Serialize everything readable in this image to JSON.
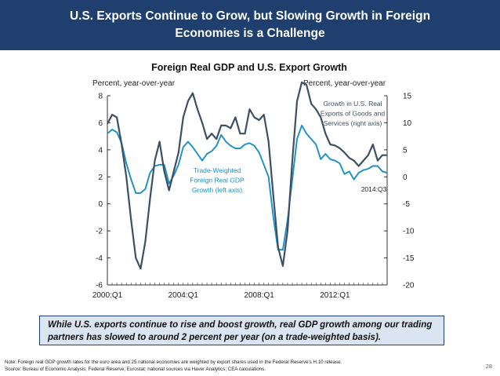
{
  "slide": {
    "title": "U.S. Exports Continue to Grow, but Slowing Growth in Foreign Economies is a Challenge",
    "callout": "While U.S. exports continue to rise and boost growth, real GDP growth among our trading partners has slowed to around 2 percent per year (on a trade-weighted basis).",
    "note": "Note: Foreign real GDP growth rates for the euro area and 25 national economies are weighted by export shares used in the Federal Reserve's H.10 release.",
    "source": "Source: Bureau of Economic Analysis; Federal Reserve; Eurostat; national sources via Haver Analytics; CEA calculations.",
    "page_number": "28"
  },
  "chart_data": {
    "type": "line",
    "title": "Foreign Real GDP and U.S. Export Growth",
    "ylabel_left": "Percent, year-over-year",
    "ylabel_right": "Percent, year-over-year",
    "ylim_left": [
      -6,
      8
    ],
    "ylim_right": [
      -20,
      15
    ],
    "yticks_left": [
      "8",
      "6",
      "4",
      "2",
      "0",
      "-2",
      "-4",
      "-6"
    ],
    "yticks_right": [
      "15",
      "10",
      "5",
      "0",
      "-5",
      "-10",
      "-15",
      "-20"
    ],
    "xticks": [
      "2000:Q1",
      "2004:Q1",
      "2008:Q1",
      "2012:Q1"
    ],
    "x_start": "2000:Q1",
    "x_end": "2014:Q3",
    "gridlines": false,
    "series": [
      {
        "name": "Trade-Weighted Foreign Real GDP Growth (left axis)",
        "label_lines": [
          "Trade-Weighted",
          "Foreign Real GDP",
          "Growth (left axis)"
        ],
        "axis": "left",
        "color": "#1a8fc4",
        "values": [
          5.2,
          5.5,
          5.3,
          4.5,
          3.0,
          1.8,
          0.8,
          0.8,
          1.1,
          2.3,
          2.8,
          2.9,
          2.9,
          1.5,
          2.1,
          2.9,
          4.2,
          4.6,
          4.2,
          3.7,
          3.2,
          3.7,
          3.9,
          4.3,
          5.1,
          4.6,
          4.3,
          4.1,
          4.1,
          4.4,
          4.5,
          4.3,
          3.8,
          2.9,
          2.0,
          -1.0,
          -3.4,
          -3.4,
          -1.2,
          1.8,
          4.8,
          5.8,
          5.2,
          4.8,
          4.4,
          3.3,
          3.7,
          3.3,
          3.2,
          3.0,
          2.2,
          2.4,
          1.8,
          2.3,
          2.5,
          2.6,
          2.8,
          2.8,
          2.4,
          2.3
        ]
      },
      {
        "name": "Growth in U.S. Real Exports of Goods and Services (right axis)",
        "label_lines": [
          "Growth in U.S. Real",
          "Exports of Goods and",
          "Services (right axis)"
        ],
        "axis": "right",
        "color": "#3d4f63",
        "values": [
          9.8,
          11.5,
          11.0,
          6.0,
          0.0,
          -8.0,
          -15.0,
          -17.0,
          -12.0,
          -4.0,
          3.0,
          6.5,
          1.0,
          -2.5,
          1.0,
          4.5,
          11.0,
          14.0,
          15.5,
          12.5,
          10.0,
          7.0,
          8.0,
          7.0,
          9.5,
          9.5,
          9.0,
          11.0,
          8.0,
          8.0,
          12.5,
          11.0,
          10.5,
          11.5,
          6.5,
          -3.5,
          -13.0,
          -16.5,
          -10.0,
          3.0,
          14.0,
          17.5,
          17.0,
          13.5,
          12.5,
          11.0,
          8.0,
          6.0,
          5.8,
          5.3,
          4.5,
          3.5,
          3.0,
          2.0,
          3.0,
          4.0,
          6.0,
          3.0,
          4.0,
          4.0
        ]
      }
    ],
    "annotations": [
      "2014:Q3"
    ]
  }
}
